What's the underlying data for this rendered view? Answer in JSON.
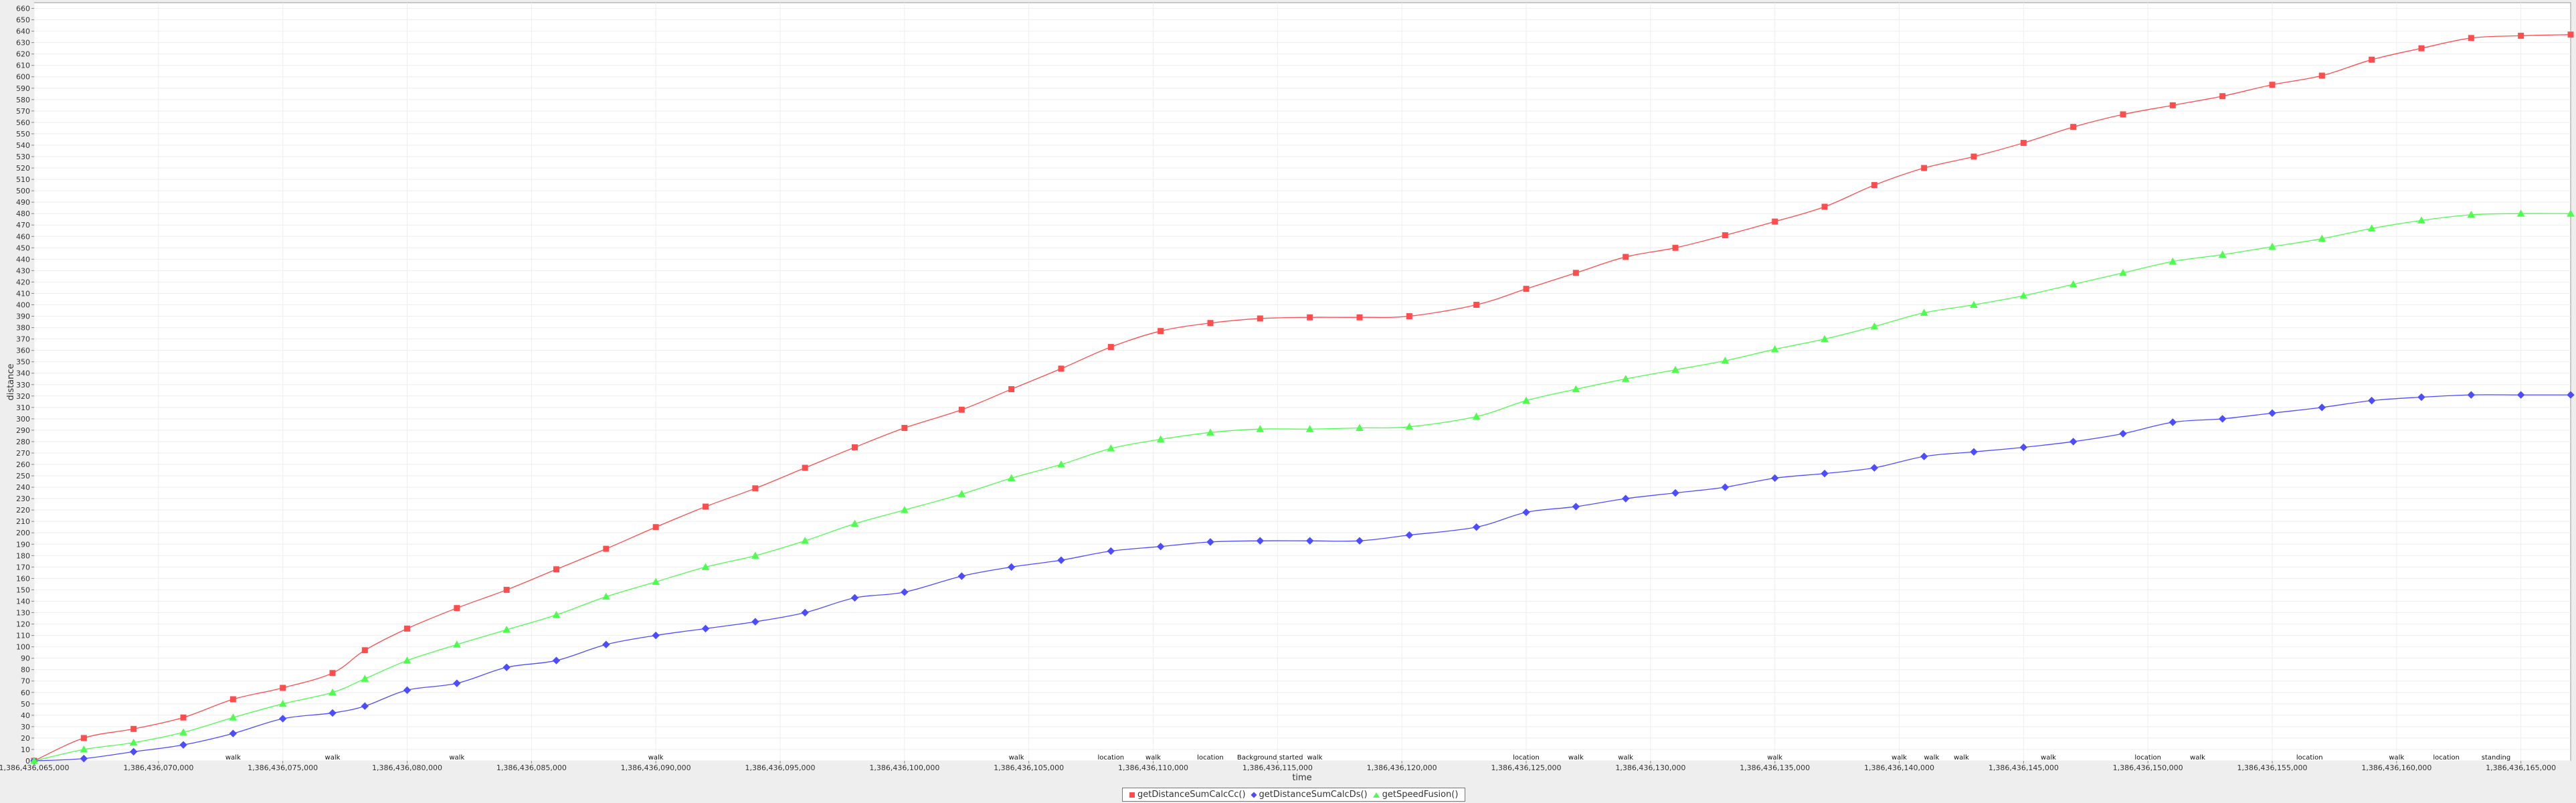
{
  "chart_data": {
    "type": "line",
    "title": "",
    "xlabel": "time",
    "ylabel": "distance",
    "xlim": [
      1386436065000,
      1386436167000
    ],
    "ylim": [
      0,
      665
    ],
    "ytick_step": 10,
    "xticks": [
      1386436065000,
      1386436070000,
      1386436075000,
      1386436080000,
      1386436085000,
      1386436090000,
      1386436095000,
      1386436100000,
      1386436105000,
      1386436110000,
      1386436115000,
      1386436120000,
      1386436125000,
      1386436130000,
      1386436135000,
      1386436140000,
      1386436145000,
      1386436150000,
      1386436155000,
      1386436160000,
      1386436165000
    ],
    "xtick_labels": [
      "1,386,436,065,000",
      "1,386,436,070,000",
      "1,386,436,075,000",
      "1,386,436,080,000",
      "1,386,436,085,000",
      "1,386,436,090,000",
      "1,386,436,095,000",
      "1,386,436,100,000",
      "1,386,436,105,000",
      "1,386,436,110,000",
      "1,386,436,115,000",
      "1,386,436,120,000",
      "1,386,436,125,000",
      "1,386,436,130,000",
      "1,386,436,135,000",
      "1,386,436,140,000",
      "1,386,436,145,000",
      "1,386,436,150,000",
      "1,386,436,155,000",
      "1,386,436,160,000",
      "1,386,436,165,000"
    ],
    "grid": true,
    "legend_position": "bottom-center",
    "x": [
      1386436065000,
      1386436067000,
      1386436069000,
      1386436071000,
      1386436073000,
      1386436075000,
      1386436077000,
      1386436078300,
      1386436080000,
      1386436082000,
      1386436084000,
      1386436086000,
      1386436088000,
      1386436090000,
      1386436092000,
      1386436094000,
      1386436096000,
      1386436098000,
      1386436100000,
      1386436102300,
      1386436104300,
      1386436106300,
      1386436108300,
      1386436110300,
      1386436112300,
      1386436114300,
      1386436116300,
      1386436118300,
      1386436120300,
      1386436123000,
      1386436125000,
      1386436127000,
      1386436129000,
      1386436131000,
      1386436133000,
      1386436135000,
      1386436137000,
      1386436139000,
      1386436141000,
      1386436143000,
      1386436145000,
      1386436147000,
      1386436149000,
      1386436151000,
      1386436153000,
      1386436155000,
      1386436157000,
      1386436159000,
      1386436161000,
      1386436163000,
      1386436165000,
      1386436167000
    ],
    "series": [
      {
        "name": "getDistanceSumCalcCc()",
        "color": "#ff4d4d",
        "marker": "square",
        "values": [
          0,
          20,
          28,
          38,
          54,
          64,
          77,
          97,
          116,
          134,
          150,
          168,
          186,
          205,
          223,
          239,
          257,
          275,
          292,
          308,
          326,
          344,
          363,
          377,
          384,
          388,
          389,
          389,
          390,
          400,
          414,
          428,
          442,
          450,
          461,
          473,
          486,
          505,
          520,
          530,
          542,
          556,
          567,
          575,
          583,
          593,
          601,
          615,
          625,
          634,
          636,
          637
        ]
      },
      {
        "name": "getDistanceSumCalcDs()",
        "color": "#4d4dff",
        "marker": "diamond",
        "values": [
          0,
          2,
          8,
          14,
          24,
          37,
          42,
          48,
          62,
          68,
          82,
          88,
          102,
          110,
          116,
          122,
          130,
          143,
          148,
          162,
          170,
          176,
          184,
          188,
          192,
          193,
          193,
          193,
          198,
          205,
          218,
          223,
          230,
          235,
          240,
          248,
          252,
          257,
          267,
          271,
          275,
          280,
          287,
          297,
          300,
          305,
          310,
          316,
          319,
          321,
          321,
          321
        ]
      },
      {
        "name": "getSpeedFusion()",
        "color": "#4dff4d",
        "marker": "triangle",
        "values": [
          0,
          10,
          16,
          25,
          38,
          50,
          60,
          72,
          88,
          102,
          115,
          128,
          144,
          157,
          170,
          180,
          193,
          208,
          220,
          234,
          248,
          260,
          274,
          282,
          288,
          291,
          291,
          292,
          293,
          302,
          316,
          326,
          335,
          343,
          351,
          361,
          370,
          381,
          393,
          400,
          408,
          418,
          428,
          438,
          444,
          451,
          458,
          467,
          474,
          479,
          480,
          480
        ]
      }
    ],
    "annotations": [
      {
        "x": 1386436073000,
        "text": "walk"
      },
      {
        "x": 1386436077000,
        "text": "walk"
      },
      {
        "x": 1386436082000,
        "text": "walk"
      },
      {
        "x": 1386436090000,
        "text": "walk"
      },
      {
        "x": 1386436104500,
        "text": "walk"
      },
      {
        "x": 1386436108300,
        "text": "location"
      },
      {
        "x": 1386436110000,
        "text": "walk"
      },
      {
        "x": 1386436112300,
        "text": "location"
      },
      {
        "x": 1386436114700,
        "text": "Background started"
      },
      {
        "x": 1386436116500,
        "text": "walk"
      },
      {
        "x": 1386436125000,
        "text": "location"
      },
      {
        "x": 1386436127000,
        "text": "walk"
      },
      {
        "x": 1386436129000,
        "text": "walk"
      },
      {
        "x": 1386436135000,
        "text": "walk"
      },
      {
        "x": 1386436140000,
        "text": "walk"
      },
      {
        "x": 1386436141300,
        "text": "walk"
      },
      {
        "x": 1386436142500,
        "text": "walk"
      },
      {
        "x": 1386436146000,
        "text": "walk"
      },
      {
        "x": 1386436150000,
        "text": "location"
      },
      {
        "x": 1386436152000,
        "text": "walk"
      },
      {
        "x": 1386436156500,
        "text": "location"
      },
      {
        "x": 1386436160000,
        "text": "walk"
      },
      {
        "x": 1386436162000,
        "text": "location"
      },
      {
        "x": 1386436164000,
        "text": "standing"
      }
    ]
  }
}
